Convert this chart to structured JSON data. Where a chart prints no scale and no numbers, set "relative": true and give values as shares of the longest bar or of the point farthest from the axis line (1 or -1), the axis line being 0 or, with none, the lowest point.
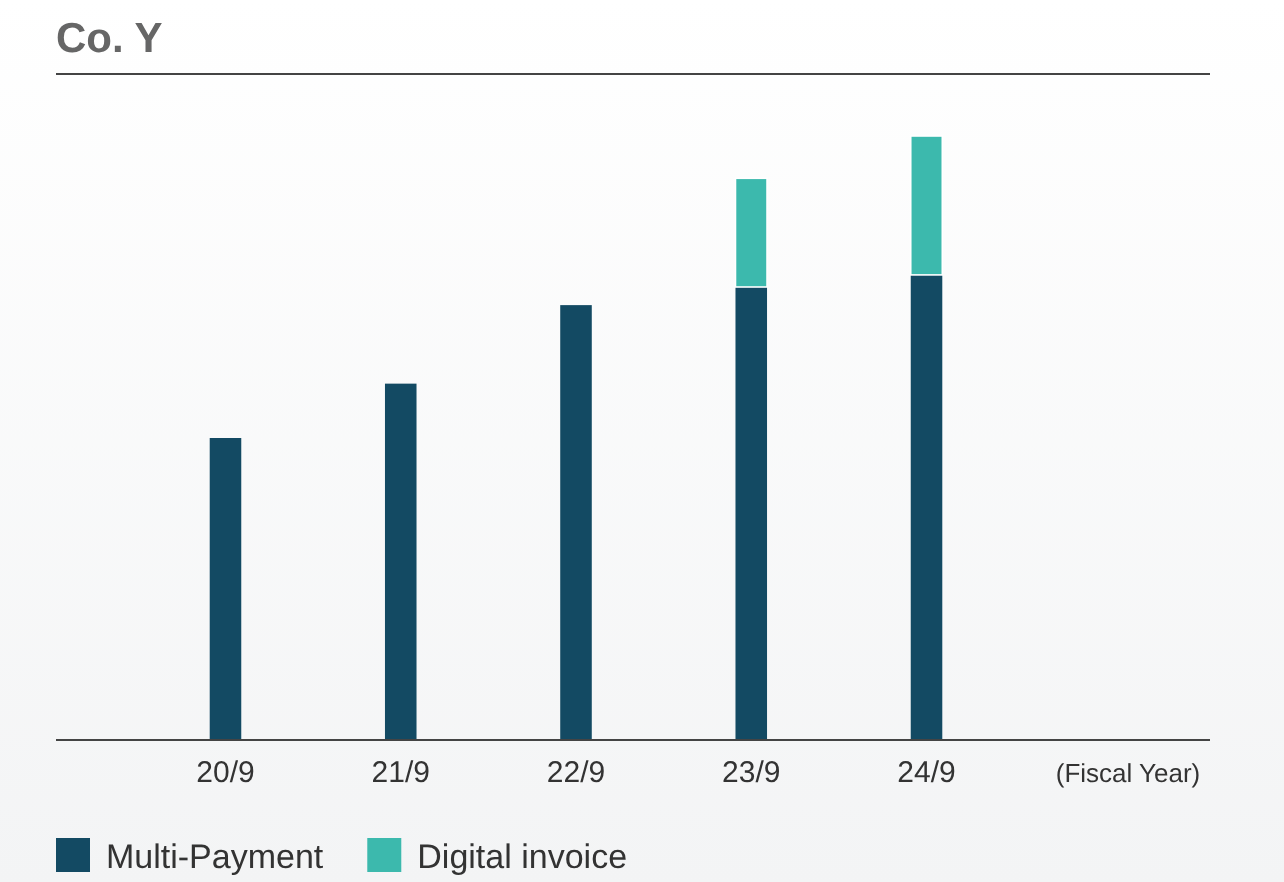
{
  "chart_data": {
    "type": "bar",
    "title": "Co. Y",
    "xlabel": "(Fiscal Year)",
    "relative": true,
    "stacked": true,
    "legend": "bottom left",
    "categories": [
      "20/9",
      "21/9",
      "22/9",
      "23/9",
      "24/9"
    ],
    "series": [
      {
        "name": "Multi-Payment",
        "color": "#134a63",
        "values": [
          0.5,
          0.59,
          0.72,
          0.75,
          0.77
        ]
      },
      {
        "name": "Digital invoice",
        "color": "#3cb9ad",
        "values": [
          null,
          null,
          null,
          0.18,
          0.23
        ]
      }
    ]
  }
}
